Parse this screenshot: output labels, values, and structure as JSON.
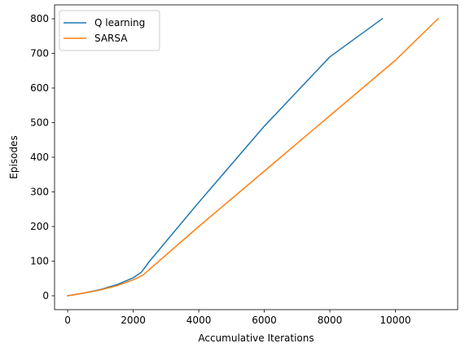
{
  "chart_data": {
    "type": "line",
    "xlabel": "Accumulative Iterations",
    "ylabel": "Episodes",
    "xlim": [
      -400,
      11900
    ],
    "ylim": [
      -40,
      840
    ],
    "xticks": [
      0,
      2000,
      4000,
      6000,
      8000,
      10000
    ],
    "yticks": [
      0,
      100,
      200,
      300,
      400,
      500,
      600,
      700,
      800
    ],
    "grid": false,
    "legend_position": "upper-left",
    "series": [
      {
        "name": "Q learning",
        "color": "#1f77b4",
        "x": [
          0,
          500,
          1000,
          1500,
          2000,
          2250,
          2500,
          4000,
          6000,
          8000,
          9600
        ],
        "y": [
          0,
          8,
          18,
          32,
          52,
          68,
          100,
          270,
          490,
          690,
          800
        ]
      },
      {
        "name": "SARSA",
        "color": "#ff7f0e",
        "x": [
          0,
          500,
          1000,
          1500,
          2000,
          2300,
          2600,
          4000,
          6000,
          8000,
          10000,
          11300
        ],
        "y": [
          0,
          8,
          17,
          29,
          46,
          60,
          85,
          200,
          360,
          520,
          680,
          800
        ]
      }
    ]
  }
}
